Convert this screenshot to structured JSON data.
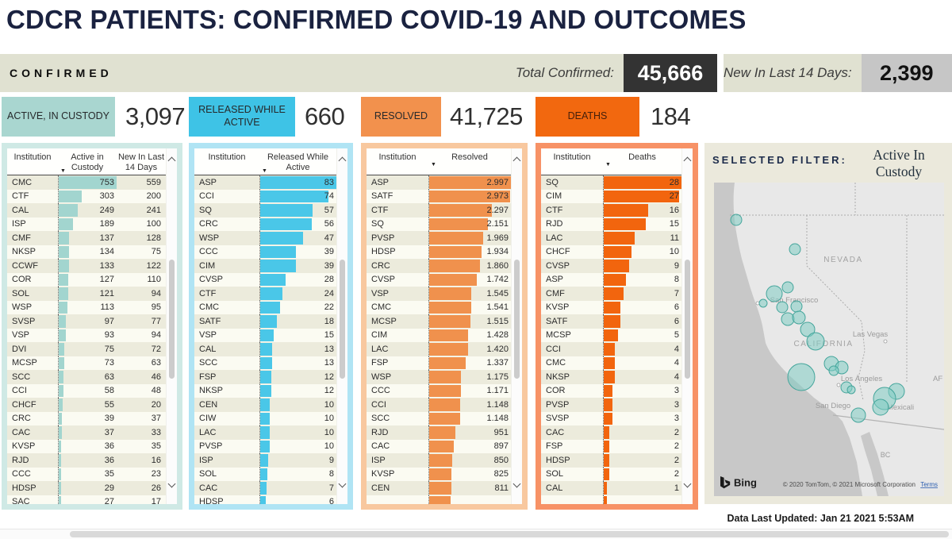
{
  "title": "CDCR PATIENTS: CONFIRMED COVID-19 AND OUTCOMES",
  "confirmed_strip": {
    "label": "CONFIRMED",
    "total_confirmed_label": "Total Confirmed:",
    "total_confirmed_value": "45,666",
    "new_last14_label": "New In Last 14 Days:",
    "new_last14_value": "2,399"
  },
  "icons": {
    "sort_desc": "▼"
  },
  "panels": [
    {
      "id": "active",
      "kpi_label": "ACTIVE, IN CUSTODY",
      "kpi_value": "3,097",
      "columns": [
        "Institution",
        "Active in Custody",
        "New In Last 14 Days"
      ],
      "bar_max": 753,
      "accent": "#a2d5cf",
      "rows": [
        {
          "inst": "CMC",
          "val": "753",
          "bar": 753,
          "extra": "559"
        },
        {
          "inst": "CTF",
          "val": "303",
          "bar": 303,
          "extra": "200"
        },
        {
          "inst": "CAL",
          "val": "249",
          "bar": 249,
          "extra": "241"
        },
        {
          "inst": "ISP",
          "val": "189",
          "bar": 189,
          "extra": "100"
        },
        {
          "inst": "CMF",
          "val": "137",
          "bar": 137,
          "extra": "128"
        },
        {
          "inst": "NKSP",
          "val": "134",
          "bar": 134,
          "extra": "75"
        },
        {
          "inst": "CCWF",
          "val": "133",
          "bar": 133,
          "extra": "122"
        },
        {
          "inst": "COR",
          "val": "127",
          "bar": 127,
          "extra": "110"
        },
        {
          "inst": "SOL",
          "val": "121",
          "bar": 121,
          "extra": "94"
        },
        {
          "inst": "WSP",
          "val": "113",
          "bar": 113,
          "extra": "95"
        },
        {
          "inst": "SVSP",
          "val": "97",
          "bar": 97,
          "extra": "77"
        },
        {
          "inst": "VSP",
          "val": "93",
          "bar": 93,
          "extra": "94"
        },
        {
          "inst": "DVI",
          "val": "75",
          "bar": 75,
          "extra": "72"
        },
        {
          "inst": "MCSP",
          "val": "73",
          "bar": 73,
          "extra": "63"
        },
        {
          "inst": "SCC",
          "val": "63",
          "bar": 63,
          "extra": "46"
        },
        {
          "inst": "CCI",
          "val": "58",
          "bar": 58,
          "extra": "48"
        },
        {
          "inst": "CHCF",
          "val": "55",
          "bar": 55,
          "extra": "20"
        },
        {
          "inst": "CRC",
          "val": "39",
          "bar": 39,
          "extra": "37"
        },
        {
          "inst": "CAC",
          "val": "37",
          "bar": 37,
          "extra": "33"
        },
        {
          "inst": "KVSP",
          "val": "36",
          "bar": 36,
          "extra": "35"
        },
        {
          "inst": "RJD",
          "val": "36",
          "bar": 36,
          "extra": "16"
        },
        {
          "inst": "CCC",
          "val": "35",
          "bar": 35,
          "extra": "23"
        },
        {
          "inst": "HDSP",
          "val": "29",
          "bar": 29,
          "extra": "26"
        },
        {
          "inst": "SAC",
          "val": "27",
          "bar": 27,
          "extra": "17"
        }
      ]
    },
    {
      "id": "released",
      "kpi_label": "RELEASED WHILE ACTIVE",
      "kpi_value": "660",
      "columns": [
        "Institution",
        "Released While Active"
      ],
      "bar_max": 83,
      "accent": "#4ac7e8",
      "rows": [
        {
          "inst": "ASP",
          "val": "83",
          "bar": 83
        },
        {
          "inst": "CCI",
          "val": "74",
          "bar": 74
        },
        {
          "inst": "SQ",
          "val": "57",
          "bar": 57
        },
        {
          "inst": "CRC",
          "val": "56",
          "bar": 56
        },
        {
          "inst": "WSP",
          "val": "47",
          "bar": 47
        },
        {
          "inst": "CCC",
          "val": "39",
          "bar": 39
        },
        {
          "inst": "CIM",
          "val": "39",
          "bar": 39
        },
        {
          "inst": "CVSP",
          "val": "28",
          "bar": 28
        },
        {
          "inst": "CTF",
          "val": "24",
          "bar": 24
        },
        {
          "inst": "CMC",
          "val": "22",
          "bar": 22
        },
        {
          "inst": "SATF",
          "val": "18",
          "bar": 18
        },
        {
          "inst": "VSP",
          "val": "15",
          "bar": 15
        },
        {
          "inst": "CAL",
          "val": "13",
          "bar": 13
        },
        {
          "inst": "SCC",
          "val": "13",
          "bar": 13
        },
        {
          "inst": "FSP",
          "val": "12",
          "bar": 12
        },
        {
          "inst": "NKSP",
          "val": "12",
          "bar": 12
        },
        {
          "inst": "CEN",
          "val": "10",
          "bar": 10
        },
        {
          "inst": "CIW",
          "val": "10",
          "bar": 10
        },
        {
          "inst": "LAC",
          "val": "10",
          "bar": 10
        },
        {
          "inst": "PVSP",
          "val": "10",
          "bar": 10
        },
        {
          "inst": "ISP",
          "val": "9",
          "bar": 9
        },
        {
          "inst": "SOL",
          "val": "8",
          "bar": 8
        },
        {
          "inst": "CAC",
          "val": "7",
          "bar": 7
        },
        {
          "inst": "HDSP",
          "val": "6",
          "bar": 6
        }
      ]
    },
    {
      "id": "resolved",
      "kpi_label": "RESOLVED",
      "kpi_value": "41,725",
      "columns": [
        "Institution",
        "Resolved"
      ],
      "bar_max": 2997,
      "accent": "#f0914d",
      "rows": [
        {
          "inst": "ASP",
          "val": "2.997",
          "bar": 2997
        },
        {
          "inst": "SATF",
          "val": "2.973",
          "bar": 2973
        },
        {
          "inst": "CTF",
          "val": "2.297",
          "bar": 2297
        },
        {
          "inst": "SQ",
          "val": "2.151",
          "bar": 2151
        },
        {
          "inst": "PVSP",
          "val": "1.969",
          "bar": 1969
        },
        {
          "inst": "HDSP",
          "val": "1.934",
          "bar": 1934
        },
        {
          "inst": "CRC",
          "val": "1.860",
          "bar": 1860
        },
        {
          "inst": "CVSP",
          "val": "1.742",
          "bar": 1742
        },
        {
          "inst": "VSP",
          "val": "1.545",
          "bar": 1545
        },
        {
          "inst": "CMC",
          "val": "1.541",
          "bar": 1541
        },
        {
          "inst": "MCSP",
          "val": "1.515",
          "bar": 1515
        },
        {
          "inst": "CIM",
          "val": "1.428",
          "bar": 1428
        },
        {
          "inst": "LAC",
          "val": "1.420",
          "bar": 1420
        },
        {
          "inst": "FSP",
          "val": "1.337",
          "bar": 1337
        },
        {
          "inst": "WSP",
          "val": "1.175",
          "bar": 1175
        },
        {
          "inst": "CCC",
          "val": "1.171",
          "bar": 1171
        },
        {
          "inst": "CCI",
          "val": "1.148",
          "bar": 1148
        },
        {
          "inst": "SCC",
          "val": "1.148",
          "bar": 1148
        },
        {
          "inst": "RJD",
          "val": "951",
          "bar": 951
        },
        {
          "inst": "CAC",
          "val": "897",
          "bar": 897
        },
        {
          "inst": "ISP",
          "val": "850",
          "bar": 850
        },
        {
          "inst": "KVSP",
          "val": "825",
          "bar": 825
        },
        {
          "inst": "CEN",
          "val": "811",
          "bar": 811
        },
        {
          "inst": "",
          "val": "",
          "bar": 780
        }
      ]
    },
    {
      "id": "deaths",
      "kpi_label": "DEATHS",
      "kpi_value": "184",
      "columns": [
        "Institution",
        "Deaths"
      ],
      "bar_max": 28,
      "accent": "#f2650e",
      "rows": [
        {
          "inst": "SQ",
          "val": "28",
          "bar": 28
        },
        {
          "inst": "CIM",
          "val": "27",
          "bar": 27
        },
        {
          "inst": "CTF",
          "val": "16",
          "bar": 16
        },
        {
          "inst": "RJD",
          "val": "15",
          "bar": 15
        },
        {
          "inst": "LAC",
          "val": "11",
          "bar": 11
        },
        {
          "inst": "CHCF",
          "val": "10",
          "bar": 10
        },
        {
          "inst": "CVSP",
          "val": "9",
          "bar": 9
        },
        {
          "inst": "ASP",
          "val": "8",
          "bar": 8
        },
        {
          "inst": "CMF",
          "val": "7",
          "bar": 7
        },
        {
          "inst": "KVSP",
          "val": "6",
          "bar": 6
        },
        {
          "inst": "SATF",
          "val": "6",
          "bar": 6
        },
        {
          "inst": "MCSP",
          "val": "5",
          "bar": 5
        },
        {
          "inst": "CCI",
          "val": "4",
          "bar": 4
        },
        {
          "inst": "CMC",
          "val": "4",
          "bar": 4
        },
        {
          "inst": "NKSP",
          "val": "4",
          "bar": 4
        },
        {
          "inst": "COR",
          "val": "3",
          "bar": 3
        },
        {
          "inst": "PVSP",
          "val": "3",
          "bar": 3
        },
        {
          "inst": "SVSP",
          "val": "3",
          "bar": 3
        },
        {
          "inst": "CAC",
          "val": "2",
          "bar": 2
        },
        {
          "inst": "FSP",
          "val": "2",
          "bar": 2
        },
        {
          "inst": "HDSP",
          "val": "2",
          "bar": 2
        },
        {
          "inst": "SOL",
          "val": "2",
          "bar": 2
        },
        {
          "inst": "CAL",
          "val": "1",
          "bar": 1
        },
        {
          "inst": "",
          "val": "",
          "bar": 1
        }
      ]
    }
  ],
  "filter": {
    "label": "SELECTED FILTER:",
    "value": "Active In Custody"
  },
  "map": {
    "labels": {
      "nevada": "NEVADA",
      "las_vegas": "Las Vegas",
      "san_francisco": "San Francisco",
      "california": "CALIFORNIA",
      "los_angeles": "Los Ángeles",
      "san_diego": "San Diego",
      "mexicali": "Mexicali",
      "af": "AF",
      "bc": "BC"
    },
    "logo": "Bing",
    "attribution": "© 2020 TomTom, © 2021 Microsoft Corporation",
    "terms": "Terms",
    "bubble_fill": "#7fccc3",
    "bubble_stroke": "#44a59b",
    "bubbles": [
      [
        28,
        47,
        7
      ],
      [
        102,
        84,
        7
      ],
      [
        76,
        140,
        10
      ],
      [
        93,
        132,
        7
      ],
      [
        62,
        152,
        5
      ],
      [
        86,
        157,
        7
      ],
      [
        104,
        156,
        7
      ],
      [
        93,
        172,
        8
      ],
      [
        107,
        170,
        8
      ],
      [
        118,
        185,
        9
      ],
      [
        128,
        200,
        11
      ],
      [
        148,
        228,
        9
      ],
      [
        161,
        233,
        8
      ],
      [
        151,
        237,
        6
      ],
      [
        110,
        245,
        17
      ],
      [
        167,
        258,
        7
      ],
      [
        173,
        261,
        5
      ],
      [
        230,
        263,
        10
      ],
      [
        215,
        272,
        14
      ],
      [
        210,
        283,
        10
      ],
      [
        182,
        293,
        9
      ]
    ]
  },
  "footer": {
    "updated": "Data Last Updated: Jan 21 2021 5:53AM"
  },
  "colors": {
    "title": "#1a2240",
    "strip_bg": "#e0e1d1",
    "dark_value_box": "#333333",
    "gray_value_box": "#c6c6c6",
    "teal": "#a9d6d0",
    "cyan": "#3ec3e6",
    "orange": "#f2914d",
    "deep_orange": "#f2680f"
  }
}
